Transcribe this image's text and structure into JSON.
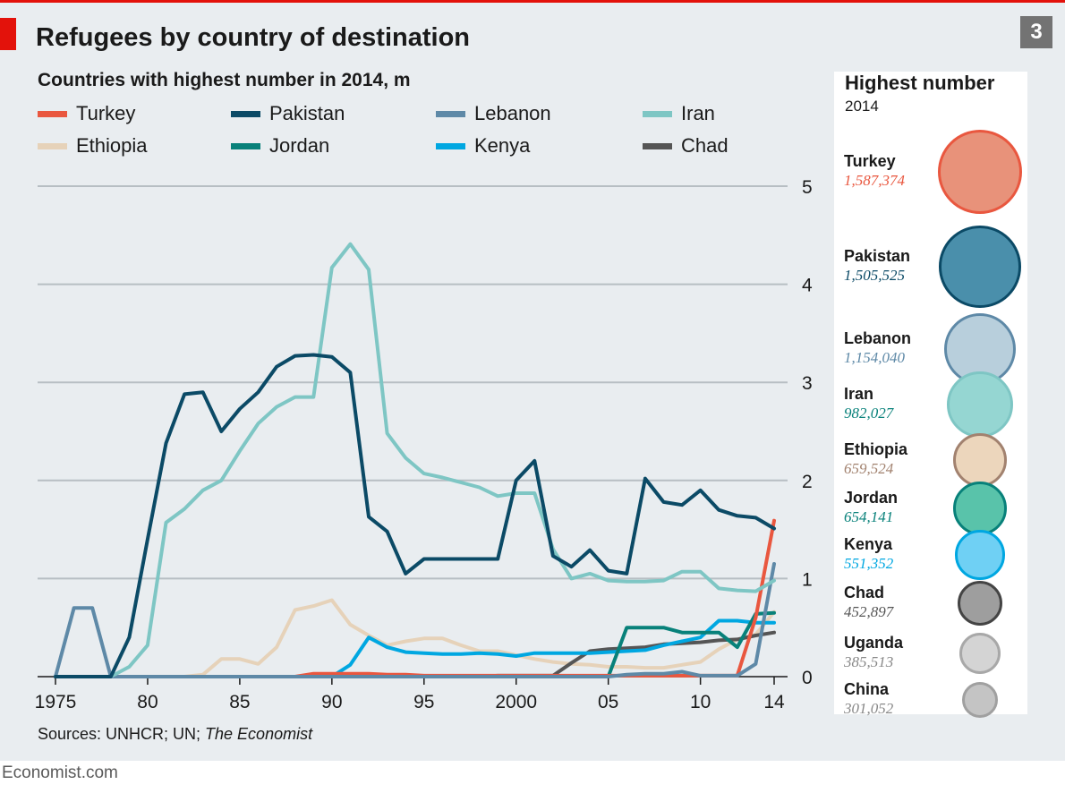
{
  "header": {
    "title": "Refugees by country of destination",
    "chart_number": "3"
  },
  "chart_data": {
    "type": "line",
    "title": "Refugees by country of destination",
    "subtitle": "Countries with highest number in 2014, m",
    "xlabel": "",
    "ylabel": "",
    "x": [
      1975,
      1976,
      1977,
      1978,
      1979,
      1980,
      1981,
      1982,
      1983,
      1984,
      1985,
      1986,
      1987,
      1988,
      1989,
      1990,
      1991,
      1992,
      1993,
      1994,
      1995,
      1996,
      1997,
      1998,
      1999,
      2000,
      2001,
      2002,
      2003,
      2004,
      2005,
      2006,
      2007,
      2008,
      2009,
      2010,
      2011,
      2012,
      2013,
      2014
    ],
    "x_tick_labels": [
      "1975",
      "80",
      "85",
      "90",
      "95",
      "2000",
      "05",
      "10",
      "14"
    ],
    "x_tick_values": [
      1975,
      1980,
      1985,
      1990,
      1995,
      2000,
      2005,
      2010,
      2014
    ],
    "y_ticks": [
      "0",
      "1",
      "2",
      "3",
      "4",
      "5"
    ],
    "ylim": [
      0,
      5
    ],
    "xlim": [
      1975,
      2014
    ],
    "grid": true,
    "y_axis_side": "right",
    "legend_position": "top",
    "series": [
      {
        "name": "Turkey",
        "color": "#e9573f",
        "values": [
          0,
          0,
          0,
          0,
          0,
          0,
          0,
          0,
          0,
          0,
          0,
          0,
          0,
          0,
          0.03,
          0.03,
          0.03,
          0.03,
          0.02,
          0.02,
          0.01,
          0.01,
          0.01,
          0.01,
          0.01,
          0.01,
          0.01,
          0.01,
          0.01,
          0.01,
          0.01,
          0.01,
          0.01,
          0.01,
          0.01,
          0.01,
          0.01,
          0.01,
          0.6,
          1.59
        ]
      },
      {
        "name": "Pakistan",
        "color": "#0b4a66",
        "values": [
          0,
          0,
          0,
          0,
          0.4,
          1.4,
          2.38,
          2.88,
          2.9,
          2.5,
          2.73,
          2.9,
          3.16,
          3.27,
          3.28,
          3.26,
          3.1,
          1.63,
          1.48,
          1.05,
          1.2,
          1.2,
          1.2,
          1.2,
          1.2,
          2.0,
          2.2,
          1.23,
          1.12,
          1.29,
          1.08,
          1.05,
          2.02,
          1.78,
          1.75,
          1.9,
          1.7,
          1.64,
          1.62,
          1.51
        ]
      },
      {
        "name": "Lebanon",
        "color": "#5e89a7",
        "values": [
          0,
          0.7,
          0.7,
          0,
          0,
          0,
          0,
          0,
          0,
          0,
          0,
          0,
          0,
          0,
          0,
          0,
          0,
          0,
          0,
          0,
          0,
          0,
          0,
          0,
          0,
          0,
          0,
          0,
          0,
          0,
          0,
          0.02,
          0.03,
          0.03,
          0.05,
          0.01,
          0.01,
          0.01,
          0.13,
          1.15
        ]
      },
      {
        "name": "Iran",
        "color": "#7ec6c4",
        "values": [
          0,
          0,
          0,
          0,
          0.1,
          0.32,
          1.57,
          1.71,
          1.9,
          2.0,
          2.3,
          2.58,
          2.75,
          2.85,
          2.85,
          4.17,
          4.41,
          4.15,
          2.48,
          2.23,
          2.07,
          2.03,
          1.98,
          1.93,
          1.84,
          1.87,
          1.87,
          1.3,
          1.0,
          1.05,
          0.98,
          0.97,
          0.97,
          0.98,
          1.07,
          1.07,
          0.9,
          0.88,
          0.87,
          0.98
        ]
      },
      {
        "name": "Ethiopia",
        "color": "#e6d2b9",
        "values": [
          0,
          0,
          0,
          0,
          0,
          0,
          0,
          0,
          0.02,
          0.18,
          0.18,
          0.13,
          0.3,
          0.68,
          0.72,
          0.78,
          0.53,
          0.42,
          0.32,
          0.36,
          0.39,
          0.39,
          0.32,
          0.26,
          0.26,
          0.22,
          0.18,
          0.15,
          0.13,
          0.12,
          0.1,
          0.1,
          0.09,
          0.09,
          0.12,
          0.15,
          0.28,
          0.38,
          0.43,
          0.66
        ]
      },
      {
        "name": "Jordan",
        "color": "#08817a",
        "values": [
          0,
          0,
          0,
          0,
          0,
          0,
          0,
          0,
          0,
          0,
          0,
          0,
          0,
          0,
          0,
          0,
          0,
          0,
          0,
          0,
          0,
          0,
          0,
          0,
          0,
          0,
          0,
          0,
          0,
          0,
          0,
          0.5,
          0.5,
          0.5,
          0.45,
          0.45,
          0.45,
          0.3,
          0.64,
          0.65
        ]
      },
      {
        "name": "Kenya",
        "color": "#00a7e1",
        "values": [
          0,
          0,
          0,
          0,
          0,
          0,
          0,
          0,
          0,
          0,
          0,
          0,
          0,
          0,
          0,
          0,
          0.12,
          0.4,
          0.3,
          0.25,
          0.24,
          0.23,
          0.23,
          0.24,
          0.23,
          0.21,
          0.24,
          0.24,
          0.24,
          0.24,
          0.25,
          0.26,
          0.27,
          0.32,
          0.36,
          0.4,
          0.57,
          0.57,
          0.55,
          0.55
        ]
      },
      {
        "name": "Chad",
        "color": "#555555",
        "values": [
          0,
          0,
          0,
          0,
          0,
          0,
          0,
          0,
          0,
          0,
          0,
          0,
          0,
          0,
          0,
          0,
          0,
          0,
          0,
          0,
          0,
          0,
          0,
          0,
          0.01,
          0.01,
          0.01,
          0.01,
          0.14,
          0.26,
          0.28,
          0.29,
          0.3,
          0.33,
          0.34,
          0.35,
          0.37,
          0.38,
          0.42,
          0.45
        ]
      }
    ],
    "side_panel": {
      "title": "Highest number",
      "subtitle": "2014",
      "type": "bubble",
      "items": [
        {
          "name": "Turkey",
          "value_label": "1,587,374",
          "value": 1587374,
          "fill": "#e8927a",
          "stroke": "#e9573f",
          "label_color": "#e9573f"
        },
        {
          "name": "Pakistan",
          "value_label": "1,505,525",
          "value": 1505525,
          "fill": "#4a8fab",
          "stroke": "#0b4a66",
          "label_color": "#0b4a66"
        },
        {
          "name": "Lebanon",
          "value_label": "1,154,040",
          "value": 1154040,
          "fill": "#b8cfdc",
          "stroke": "#5e89a7",
          "label_color": "#5e89a7"
        },
        {
          "name": "Iran",
          "value_label": "982,027",
          "value": 982027,
          "fill": "#95d6d2",
          "stroke": "#7ec6c4",
          "label_color": "#08817a"
        },
        {
          "name": "Ethiopia",
          "value_label": "659,524",
          "value": 659524,
          "fill": "#ecd6bc",
          "stroke": "#a2826f",
          "label_color": "#a2826f"
        },
        {
          "name": "Jordan",
          "value_label": "654,141",
          "value": 654141,
          "fill": "#59c3aa",
          "stroke": "#08817a",
          "label_color": "#08817a"
        },
        {
          "name": "Kenya",
          "value_label": "551,352",
          "value": 551352,
          "fill": "#6fd0f4",
          "stroke": "#00a7e1",
          "label_color": "#00a7e1"
        },
        {
          "name": "Chad",
          "value_label": "452,897",
          "value": 452897,
          "fill": "#9e9e9e",
          "stroke": "#444444",
          "label_color": "#555555"
        },
        {
          "name": "Uganda",
          "value_label": "385,513",
          "value": 385513,
          "fill": "#d4d4d4",
          "stroke": "#a8a8a8",
          "label_color": "#888888"
        },
        {
          "name": "China",
          "value_label": "301,052",
          "value": 301052,
          "fill": "#c4c4c4",
          "stroke": "#a0a0a0",
          "label_color": "#888888"
        }
      ]
    }
  },
  "footer": {
    "sources_prefix": "Sources: UNHCR; UN; ",
    "sources_italic": "The Economist",
    "brand": "Economist.com"
  }
}
